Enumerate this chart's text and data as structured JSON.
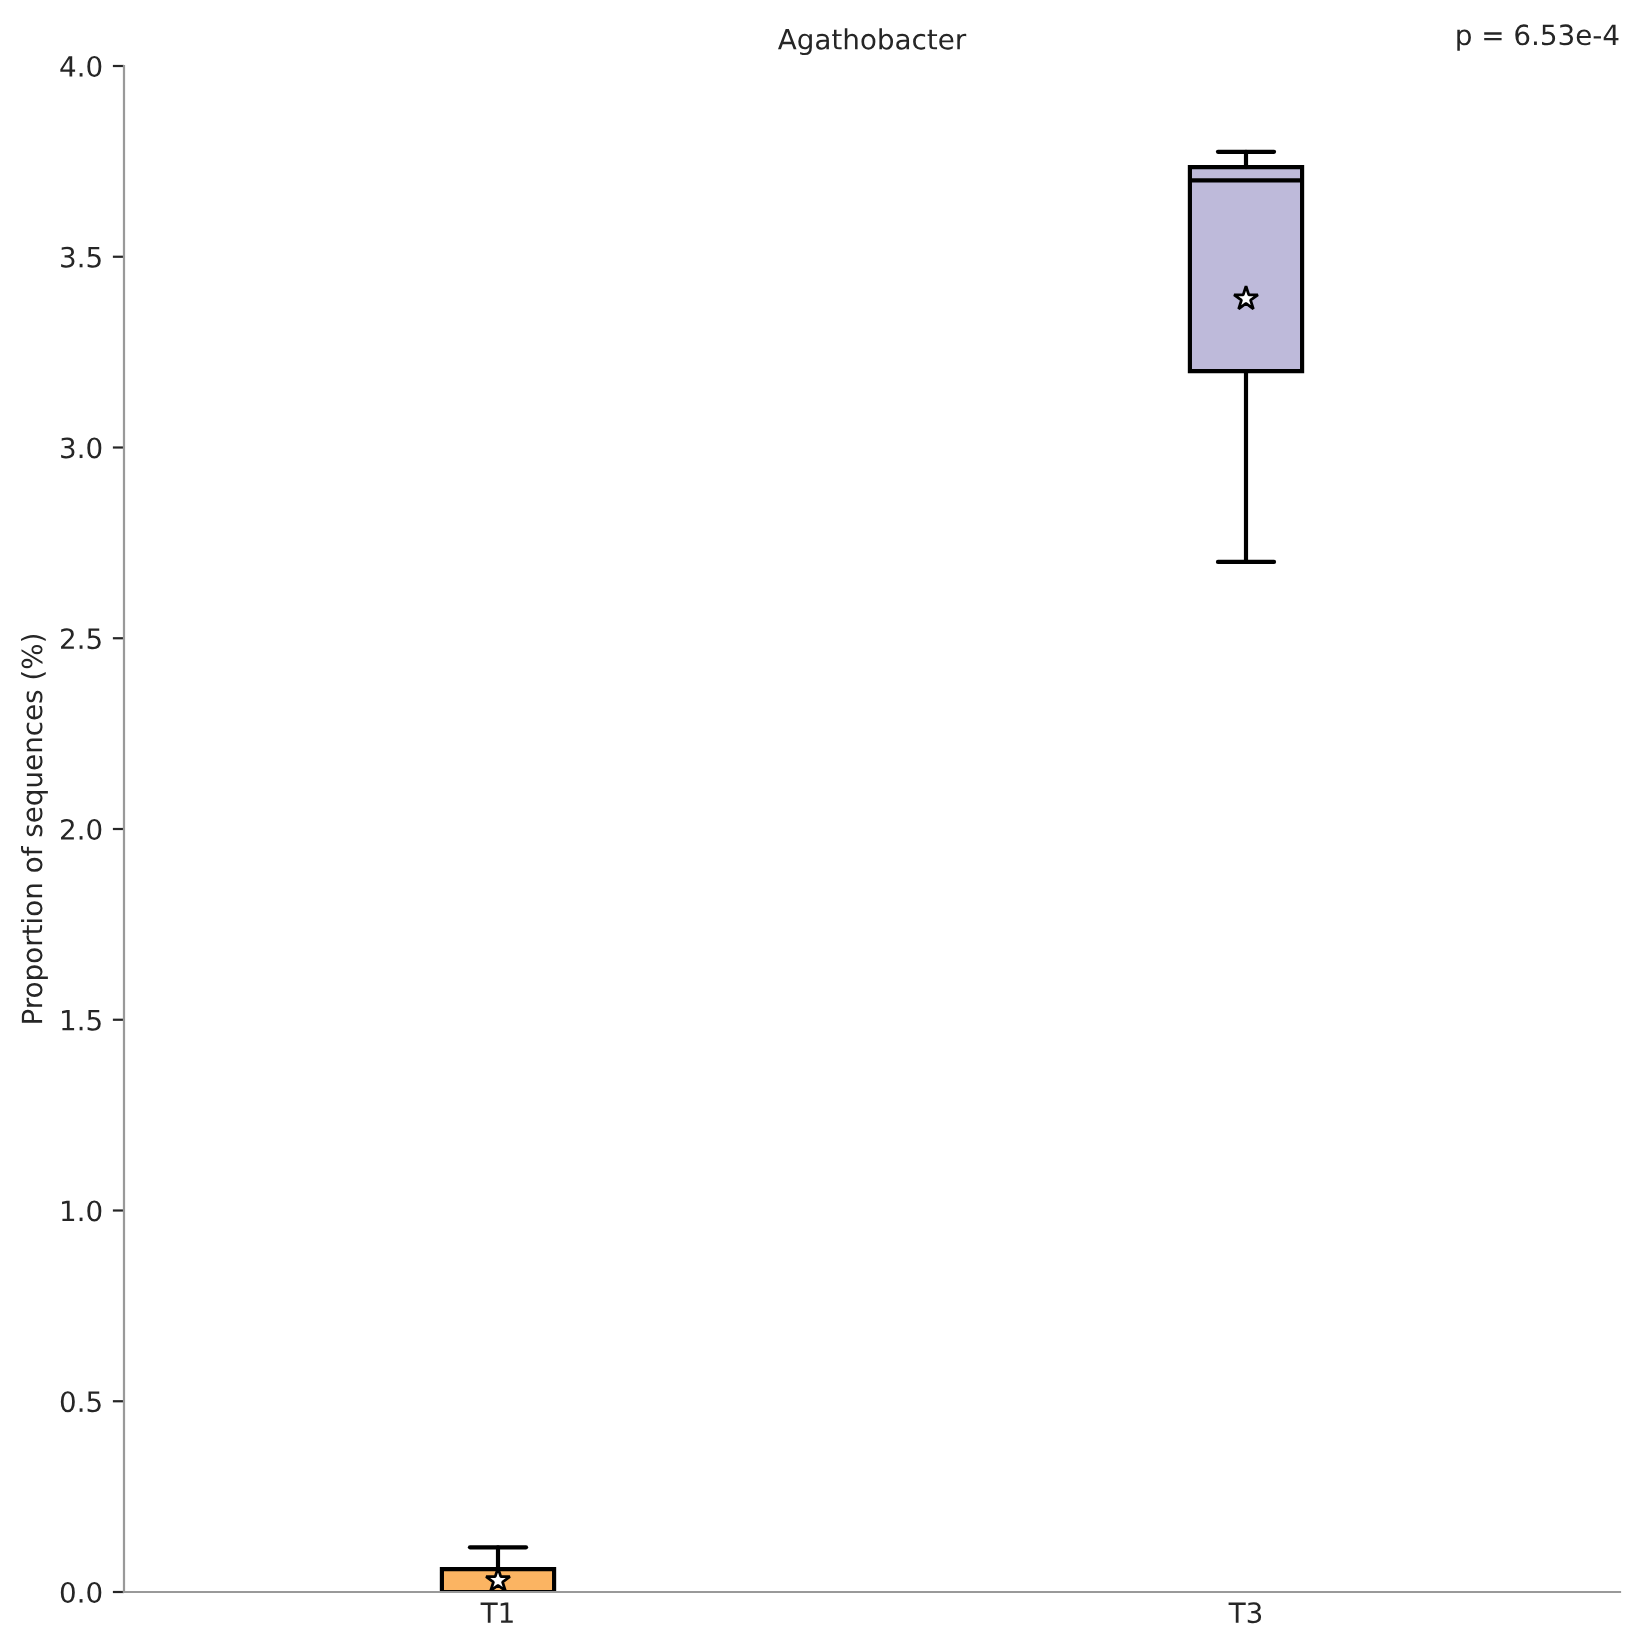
{
  "chart_data": {
    "type": "box",
    "title": "Agathobacter",
    "ylabel": "Proportion of sequences (%)",
    "categories": [
      "T1",
      "T3"
    ],
    "colors": [
      "#fbb462",
      "#bebada"
    ],
    "boxes": [
      {
        "low": 0,
        "q1": 0,
        "median": 0,
        "q3": 0.06,
        "high": 0.117,
        "mean": 0.03
      },
      {
        "low": 2.7,
        "q1": 3.2,
        "median": 3.7,
        "q3": 3.735,
        "high": 3.775,
        "mean": 3.39
      }
    ],
    "ylim": [
      0,
      4
    ],
    "yticks": [
      {
        "value": 0,
        "label": "0.0"
      },
      {
        "value": 0.5,
        "label": "0.5"
      },
      {
        "value": 1,
        "label": "1.0"
      },
      {
        "value": 1.5,
        "label": "1.5"
      },
      {
        "value": 2,
        "label": "2.0"
      },
      {
        "value": 2.5,
        "label": "2.5"
      },
      {
        "value": 3,
        "label": "3.0"
      },
      {
        "value": 3.5,
        "label": "3.5"
      },
      {
        "value": 4,
        "label": "4.0"
      }
    ],
    "annotations": [
      "p = 6.53e-4"
    ],
    "grid": false,
    "legend": false
  }
}
